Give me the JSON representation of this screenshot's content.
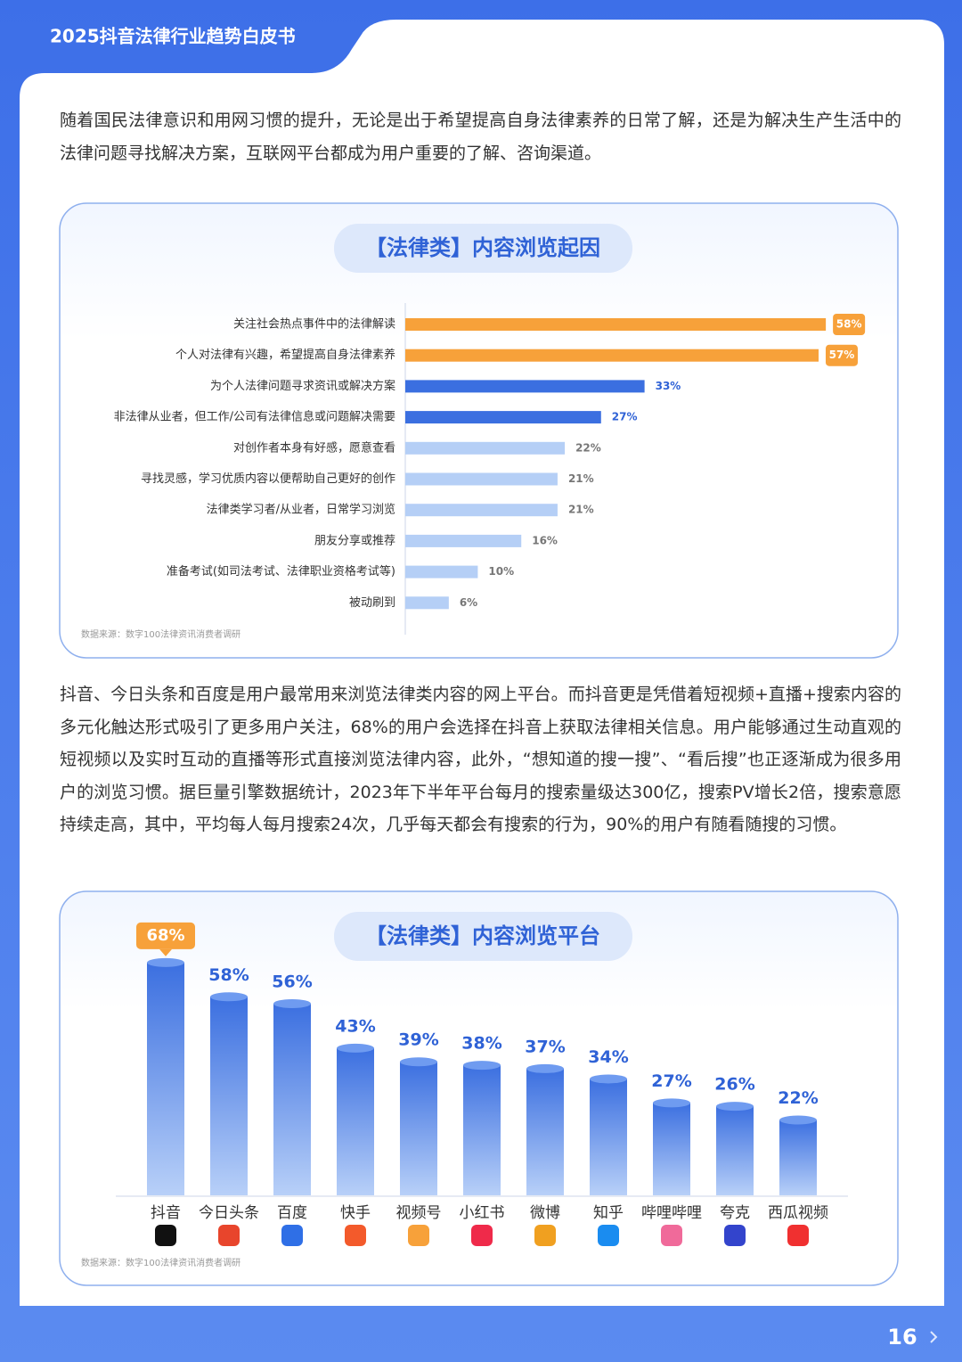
{
  "header": {
    "title": "2025抖音法律行业趋势白皮书"
  },
  "paragraphs": [
    "随着国民法律意识和用网习惯的提升，无论是出于希望提高自身法律素养的日常了解，还是为解决生产生活中的法律问题寻找解决方案，互联网平台都成为用户重要的了解、咨询渠道。",
    "抖音、今日头条和百度是用户最常用来浏览法律类内容的网上平台。而抖音更是凭借着短视频+直播+搜索内容的多元化触达形式吸引了更多用户关注，68%的用户会选择在抖音上获取法律相关信息。用户能够通过生动直观的短视频以及实时互动的直播等形式直接浏览法律内容，此外，“想知道的搜一搜”、“看后搜”也正逐渐成为很多用户的浏览习惯。据巨量引擎数据统计，2023年下半年平台每月的搜索量级达300亿，搜索PV增长2倍，搜索意愿持续走高，其中，平均每人每月搜索24次，几乎每天都会有搜索的行为，90%的用户有随看随搜的习惯。"
  ],
  "chart_data": [
    {
      "type": "barh",
      "title": "【法律类】内容浏览起因",
      "categories": [
        "关注社会热点事件中的法律解读",
        "个人对法律有兴趣，希望提高自身法律素养",
        "为个人法律问题寻求资讯或解决方案",
        "非法律从业者，但工作/公司有法律信息或问题解决需要",
        "对创作者本身有好感，愿意查看",
        "寻找灵感，学习优质内容以便帮助自己更好的创作",
        "法律类学习者/从业者，日常学习浏览",
        "朋友分享或推荐",
        "准备考试(如司法考试、法律职业资格考试等)",
        "被动刷到"
      ],
      "values": [
        58,
        57,
        33,
        27,
        22,
        21,
        21,
        16,
        10,
        6
      ],
      "value_labels": [
        "58%",
        "57%",
        "33%",
        "27%",
        "22%",
        "21%",
        "21%",
        "16%",
        "10%",
        "6%"
      ],
      "colors": [
        "#f7a13a",
        "#f7a13a",
        "#3b6fe0",
        "#3b6fe0",
        "#b5cff6",
        "#b5cff6",
        "#b5cff6",
        "#b5cff6",
        "#b5cff6",
        "#b5cff6"
      ],
      "highlight_color": "#f7a13a",
      "source": "数据来源：数字100法律资讯消费者调研"
    },
    {
      "type": "bar",
      "title": "【法律类】内容浏览平台",
      "categories": [
        "抖音",
        "今日头条",
        "百度",
        "快手",
        "视频号",
        "小红书",
        "微博",
        "知乎",
        "哔哩哔哩",
        "夸克",
        "西瓜视频"
      ],
      "values": [
        68,
        58,
        56,
        43,
        39,
        38,
        37,
        34,
        27,
        26,
        22
      ],
      "value_labels": [
        "68%",
        "58%",
        "56%",
        "43%",
        "39%",
        "38%",
        "37%",
        "34%",
        "27%",
        "26%",
        "22%"
      ],
      "color": "#3b6fe0",
      "label_colors": [
        "#f7a13a",
        "#2f62d6",
        "#2f62d6",
        "#2f62d6",
        "#2f62d6",
        "#2f62d6",
        "#2f62d6",
        "#2f62d6",
        "#2f62d6",
        "#2f62d6",
        "#2f62d6"
      ],
      "highlight_color": "#f7a13a",
      "icon_colors": [
        "#111111",
        "#e8452c",
        "#2f6fe6",
        "#f35a2b",
        "#f7a13a",
        "#ef2a4a",
        "#f0a020",
        "#1a8cf0",
        "#f06a9a",
        "#3344cc",
        "#f03030"
      ],
      "source": "数据来源：数字100法律资讯消费者调研"
    }
  ],
  "page_number": "16"
}
